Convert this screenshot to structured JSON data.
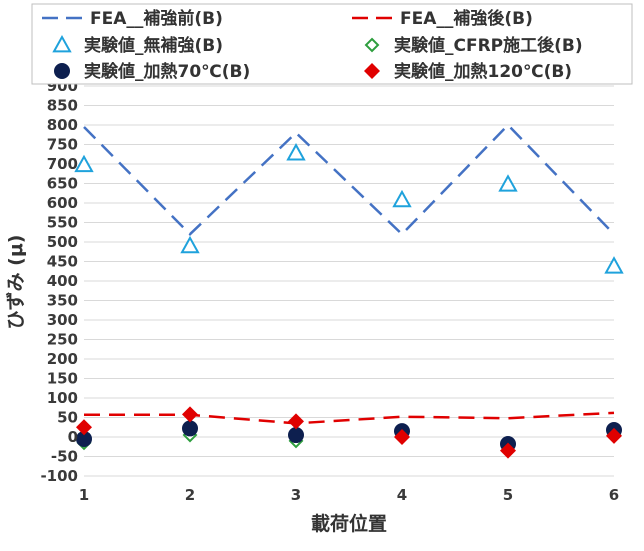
{
  "chart_data": {
    "type": "line",
    "xlabel": "載荷位置",
    "ylabel": "ひずみ (μ)",
    "categories": [
      "1",
      "2",
      "3",
      "4",
      "5",
      "6"
    ],
    "x": [
      1,
      2,
      3,
      4,
      5,
      6
    ],
    "xlim": [
      1,
      6
    ],
    "ylim": [
      -100,
      900
    ],
    "yticks": [
      -100,
      -50,
      0,
      50,
      100,
      150,
      200,
      250,
      300,
      350,
      400,
      450,
      500,
      550,
      600,
      650,
      700,
      750,
      800,
      850,
      900
    ],
    "grid": "horizontal",
    "legend_position": "top",
    "series": [
      {
        "name": "FEA__補強前(B)",
        "kind": "dashed-line",
        "color": "#4472C4",
        "values": [
          795,
          520,
          780,
          520,
          800,
          520
        ]
      },
      {
        "name": "FEA__補強後(B)",
        "kind": "dashed-line",
        "color": "#E00000",
        "values": [
          57,
          57,
          35,
          52,
          48,
          62
        ]
      },
      {
        "name": "実験値_無補強(B)",
        "kind": "open-triangle",
        "color": "#1FA2DC",
        "values": [
          698,
          490,
          728,
          608,
          648,
          438
        ]
      },
      {
        "name": "実験値_CFRP施工後(B)",
        "kind": "open-diamond",
        "color": "#2E9E3E",
        "values": [
          -15,
          5,
          -10,
          15,
          -20,
          5
        ]
      },
      {
        "name": "実験値_加熱70℃(B)",
        "kind": "filled-circle",
        "color": "#0D1F4F",
        "values": [
          -5,
          22,
          5,
          15,
          -18,
          18
        ]
      },
      {
        "name": "実験値_加熱120℃(B)",
        "kind": "filled-diamond",
        "color": "#E00000",
        "values": [
          25,
          58,
          40,
          0,
          -35,
          3
        ]
      }
    ]
  }
}
